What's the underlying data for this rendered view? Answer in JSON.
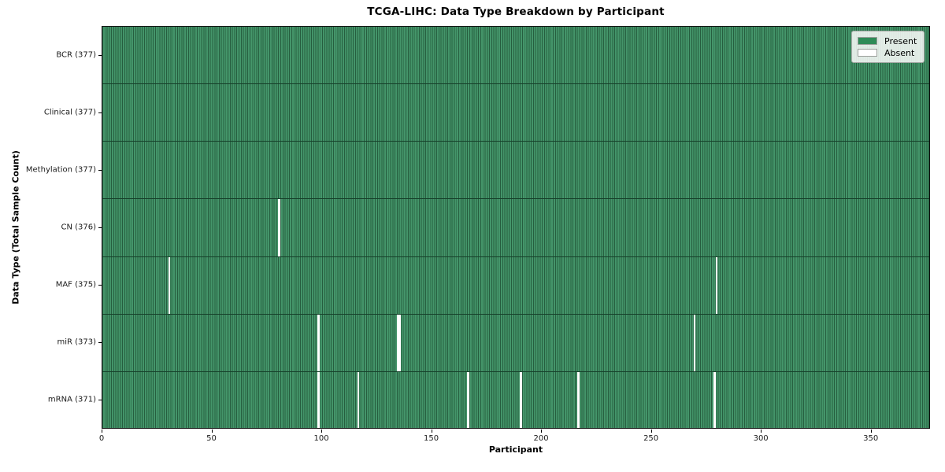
{
  "chart_data": {
    "type": "heatmap",
    "title": "TCGA-LIHC: Data Type Breakdown by Participant",
    "xlabel": "Participant",
    "ylabel": "Data Type (Total Sample Count)",
    "n_participants": 377,
    "x_ticks": [
      0,
      50,
      100,
      150,
      200,
      250,
      300,
      350
    ],
    "grid": "cell-edges",
    "legend_position": "upper right",
    "legend": [
      {
        "label": "Present",
        "color": "#2e8b57"
      },
      {
        "label": "Absent",
        "color": "#ffffff"
      }
    ],
    "colors": {
      "cell_present_light": "#44956a",
      "cell_edge_dark": "#265e3f",
      "row_divider": "#16402a",
      "absent": "#ffffff",
      "frame": "#141414"
    },
    "rows": [
      {
        "label": "BCR (377)",
        "data_type": "BCR",
        "present_count": 377,
        "absent_participants": []
      },
      {
        "label": "Clinical (377)",
        "data_type": "Clinical",
        "present_count": 377,
        "absent_participants": []
      },
      {
        "label": "Methylation (377)",
        "data_type": "Methylation",
        "present_count": 377,
        "absent_participants": []
      },
      {
        "label": "CN (376)",
        "data_type": "CN",
        "present_count": 376,
        "absent_participants": [
          80
        ]
      },
      {
        "label": "MAF (375)",
        "data_type": "MAF",
        "present_count": 375,
        "absent_participants": [
          30,
          279
        ]
      },
      {
        "label": "miR (373)",
        "data_type": "miR",
        "present_count": 373,
        "absent_participants": [
          98,
          134,
          135,
          269
        ]
      },
      {
        "label": "mRNA (371)",
        "data_type": "mRNA",
        "present_count": 371,
        "absent_participants": [
          98,
          116,
          166,
          190,
          216,
          278
        ]
      }
    ]
  }
}
